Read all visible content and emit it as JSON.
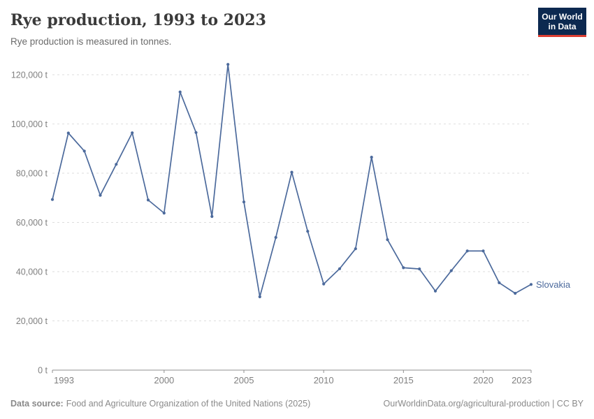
{
  "header": {
    "title": "Rye production, 1993 to 2023",
    "subtitle": "Rye production is measured in tonnes."
  },
  "logo": {
    "line1": "Our World",
    "line2": "in Data",
    "bg_color": "#0c2950",
    "accent_color": "#dc3e32"
  },
  "footer": {
    "source_label": "Data source:",
    "source_text": "Food and Agriculture Organization of the United Nations (2025)",
    "link_text": "OurWorldinData.org/agricultural-production | CC BY"
  },
  "chart_data": {
    "type": "line",
    "title": "Rye production, 1993 to 2023",
    "ylabel": "tonnes",
    "xlabel": "",
    "grid": true,
    "grid_style": "dashed",
    "marker": "circle",
    "legend_position": "end-of-line",
    "xlim": [
      1993,
      2023
    ],
    "ylim": [
      0,
      120000
    ],
    "xticks": [
      1993,
      2000,
      2005,
      2010,
      2015,
      2020,
      2023
    ],
    "yticks": [
      0,
      20000,
      40000,
      60000,
      80000,
      100000,
      120000
    ],
    "ytick_labels": [
      "0 t",
      "20,000 t",
      "40,000 t",
      "60,000 t",
      "80,000 t",
      "100,000 t",
      "120,000 t"
    ],
    "x": [
      1993,
      1994,
      1995,
      1996,
      1997,
      1998,
      1999,
      2000,
      2001,
      2002,
      2003,
      2004,
      2005,
      2006,
      2007,
      2008,
      2009,
      2010,
      2011,
      2012,
      2013,
      2014,
      2015,
      2016,
      2017,
      2018,
      2019,
      2020,
      2021,
      2022,
      2023
    ],
    "series": [
      {
        "name": "Slovakia",
        "color": "#4C6A9C",
        "values": [
          69300,
          96300,
          89000,
          71000,
          83600,
          96400,
          69100,
          63800,
          113000,
          96500,
          62400,
          124200,
          68300,
          29800,
          53900,
          80400,
          56400,
          35000,
          41200,
          49300,
          86500,
          53000,
          41600,
          41100,
          32100,
          40400,
          48400,
          48400,
          35500,
          31200,
          34800
        ]
      }
    ],
    "axis_color": "#8f8f8f",
    "gridline_color": "#dedede",
    "tick_label_color": "#808080"
  }
}
